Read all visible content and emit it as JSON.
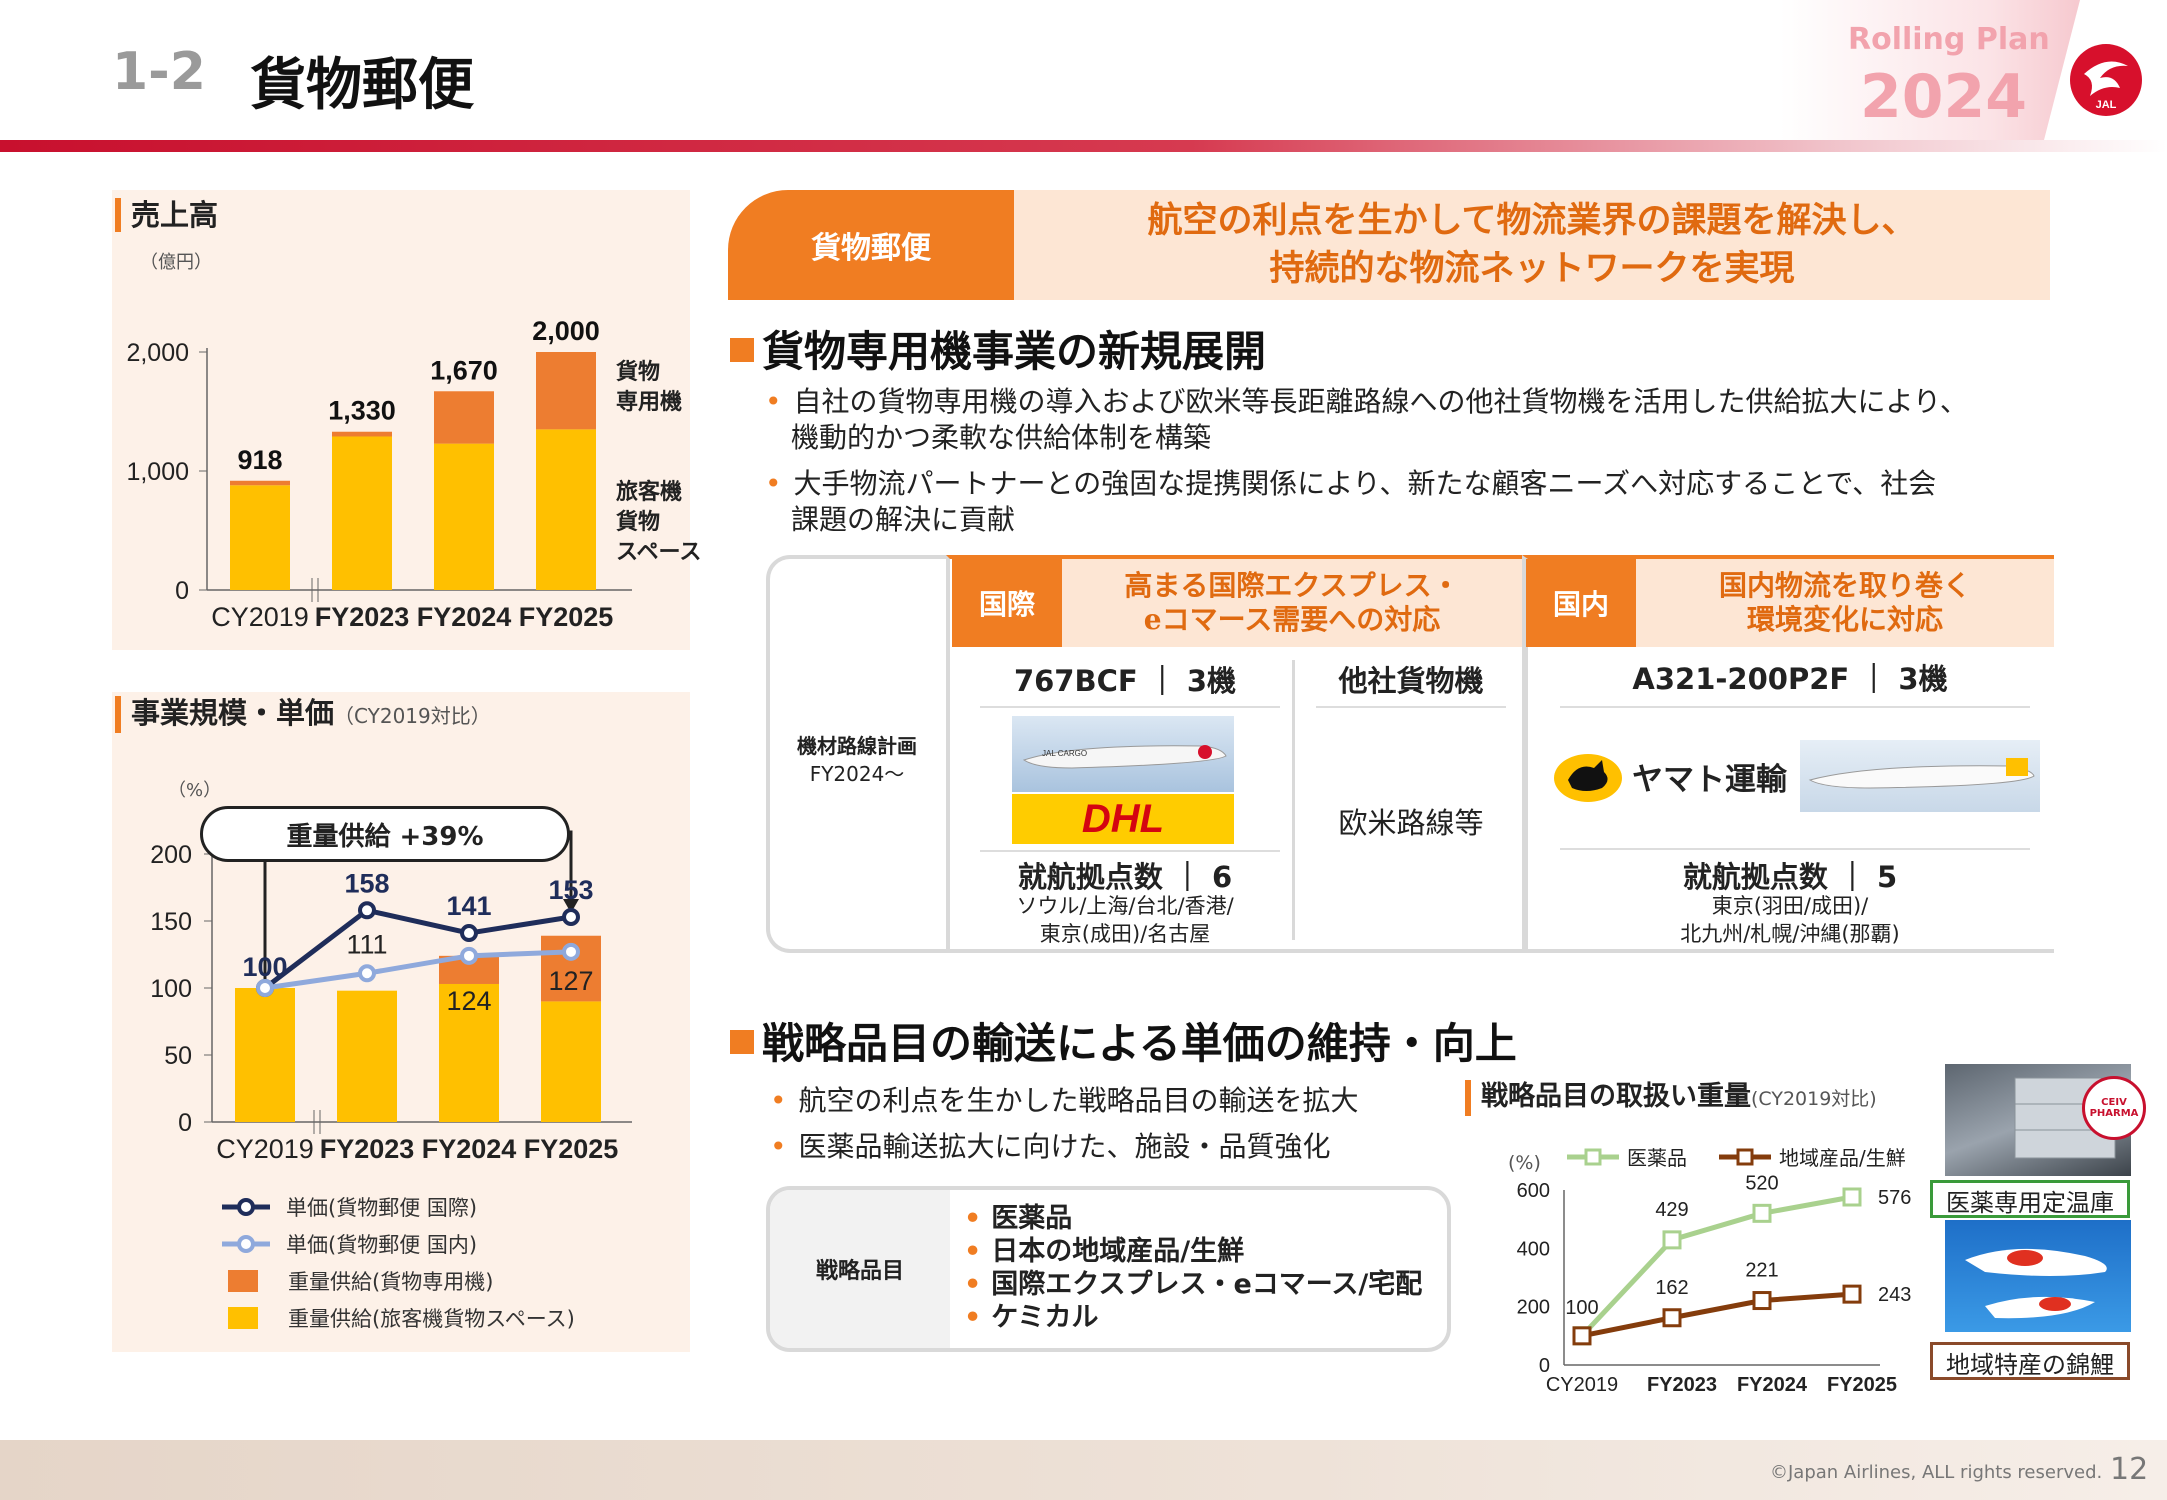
{
  "header": {
    "number": "1-2",
    "title": "貨物郵便",
    "rolling_plan": "Rolling Plan",
    "year": "2024",
    "logo_text": "JAL"
  },
  "sales": {
    "title": "売上高",
    "unit": "（億円）",
    "legend_top": [
      "貨物",
      "専用機"
    ],
    "legend_bottom": [
      "旅客機",
      "貨物",
      "スペース"
    ]
  },
  "scale": {
    "title": "事業規模・単価",
    "subtitle": "（CY2019対比）",
    "unit": "（%）",
    "annotation": "重量供給 +39%",
    "legend": [
      "単価(貨物郵便 国際)",
      "単価(貨物郵便 国内)",
      "重量供給(貨物専用機)",
      "重量供給(旅客機貨物スペース)"
    ]
  },
  "banner": {
    "left": "貨物郵便",
    "line1": "航空の利点を生かして物流業界の課題を解決し、",
    "line2": "持続的な物流ネットワークを実現"
  },
  "section1": {
    "heading": "貨物専用機事業の新規展開",
    "bullets": [
      "自社の貨物専用機の導入および欧米等長距離路線への他社貨物機を活用した供給拡大により、",
      "機動的かつ柔軟な供給体制を構築",
      "大手物流パートナーとの強固な提携関係により、新たな顧客ニーズへ対応することで、社会",
      "課題の解決に貢献"
    ]
  },
  "fleet": {
    "row_label1": "機材路線計画",
    "row_label2": "FY2024～",
    "intl": {
      "tag": "国際",
      "title1": "高まる国際エクスプレス・",
      "title2": "eコマース需要への対応",
      "col1_head": "767BCF ｜ 3機",
      "col2_head": "他社貨物機",
      "col2_body": "欧米路線等",
      "dhl": "DHL",
      "jal_cargo": "JAL CARGO",
      "bases": "就航拠点数 ｜ 6",
      "cities1": "ソウル/上海/台北/香港/",
      "cities2": "東京(成田)/名古屋"
    },
    "dom": {
      "tag": "国内",
      "title1": "国内物流を取り巻く",
      "title2": "環境変化に対応",
      "head": "A321-200P2F ｜ 3機",
      "yamato": "ヤマト運輸",
      "bases": "就航拠点数 ｜ 5",
      "cities1": "東京(羽田/成田)/",
      "cities2": "北九州/札幌/沖縄(那覇)"
    }
  },
  "section2": {
    "heading": "戦略品目の輸送による単価の維持・向上",
    "bullets": [
      "航空の利点を生かした戦略品目の輸送を拡大",
      "医薬品輸送拡大に向けた、施設・品質強化"
    ],
    "box_label": "戦略品目",
    "items": [
      "医薬品",
      "日本の地域産品/生鮮",
      "国際エクスプレス・eコマース/宅配",
      "ケミカル"
    ]
  },
  "weight": {
    "title": "戦略品目の取扱い重量",
    "subtitle": "(CY2019対比)",
    "unit": "(%)",
    "legend": [
      "医薬品",
      "地域産品/生鮮"
    ]
  },
  "photos": {
    "cap1": "医薬専用定温庫",
    "cap2": "地域特産の錦鯉",
    "ceiv": "CEIV PHARMA"
  },
  "footer": {
    "copyright": "©Japan Airlines, ALL rights reserved.",
    "page": "12"
  },
  "colors": {
    "accent": "#f07d22",
    "jal_red": "#c8102e",
    "yellow": "#ffc000",
    "orange": "#ed7d31",
    "navy": "#1f2d5a",
    "lightblue": "#8fa9dc"
  },
  "chart_data": [
    {
      "type": "bar",
      "title": "売上高",
      "categories": [
        "CY2019",
        "FY2023",
        "FY2024",
        "FY2025"
      ],
      "series": [
        {
          "name": "旅客機貨物スペース",
          "values": [
            880,
            1290,
            1230,
            1350
          ]
        },
        {
          "name": "貨物専用機",
          "values": [
            38,
            40,
            440,
            650
          ]
        }
      ],
      "totals": [
        918,
        1330,
        1670,
        2000
      ],
      "total_labels": [
        "918",
        "1,330",
        "1,670",
        "2,000"
      ],
      "ylim": [
        0,
        2000
      ],
      "yticks": [
        0,
        1000,
        2000
      ],
      "ytick_labels": [
        "0",
        "1,000",
        "2,000"
      ]
    },
    {
      "type": "bar",
      "title": "事業規模・単価",
      "categories": [
        "CY2019",
        "FY2023",
        "FY2024",
        "FY2025"
      ],
      "bars": [
        {
          "name": "重量供給(旅客機貨物スペース)",
          "values": [
            100,
            98,
            103,
            90
          ]
        },
        {
          "name": "重量供給(貨物専用機)",
          "values": [
            0,
            0,
            21,
            49
          ]
        }
      ],
      "lines": [
        {
          "name": "単価(貨物郵便 国際)",
          "values": [
            100,
            158,
            141,
            153
          ]
        },
        {
          "name": "単価(貨物郵便 国内)",
          "values": [
            100,
            111,
            124,
            127
          ]
        }
      ],
      "ylim": [
        0,
        200
      ],
      "yticks": [
        0,
        50,
        100,
        150,
        200
      ]
    },
    {
      "type": "line",
      "title": "戦略品目の取扱い重量",
      "categories": [
        "CY2019",
        "FY2023",
        "FY2024",
        "FY2025"
      ],
      "series": [
        {
          "name": "医薬品",
          "values": [
            100,
            429,
            520,
            576
          ]
        },
        {
          "name": "地域産品/生鮮",
          "values": [
            100,
            162,
            221,
            243
          ]
        }
      ],
      "ylim": [
        0,
        600
      ],
      "yticks": [
        0,
        200,
        400,
        600
      ]
    }
  ]
}
